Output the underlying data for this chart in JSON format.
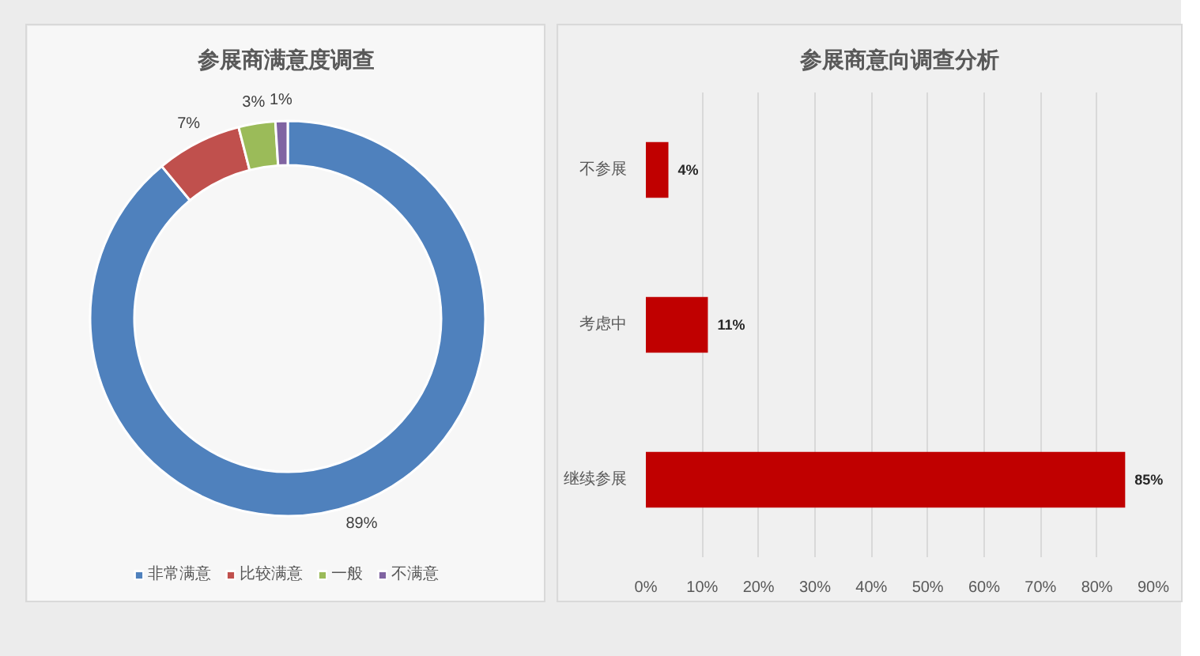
{
  "chart_data": [
    {
      "type": "donut",
      "title": "参展商满意度调查",
      "categories": [
        "非常满意",
        "比较满意",
        "一般",
        "不满意"
      ],
      "values": [
        89,
        7,
        3,
        1
      ],
      "colors": [
        "#4f81bd",
        "#c0504d",
        "#9bbb59",
        "#8064a2"
      ],
      "value_labels": [
        "89%",
        "7%",
        "3%",
        "1%"
      ],
      "legend": "bottom"
    },
    {
      "type": "bar",
      "orientation": "horizontal",
      "title": "参展商意向调查分析",
      "categories": [
        "不参展",
        "考虑中",
        "继续参展"
      ],
      "values": [
        4,
        11,
        85
      ],
      "color": "#c00000",
      "value_labels": [
        "4%",
        "11%",
        "85%"
      ],
      "xlim": [
        0,
        90
      ],
      "xticks": [
        {
          "value": 0,
          "label": "0%"
        },
        {
          "value": 10,
          "label": "10%"
        },
        {
          "value": 20,
          "label": "20%"
        },
        {
          "value": 30,
          "label": "30%"
        },
        {
          "value": 40,
          "label": "40%"
        },
        {
          "value": 50,
          "label": "50%"
        },
        {
          "value": 60,
          "label": "60%"
        },
        {
          "value": 70,
          "label": "70%"
        },
        {
          "value": 80,
          "label": "80%"
        },
        {
          "value": 90,
          "label": "90%"
        }
      ],
      "grid": "x"
    }
  ]
}
